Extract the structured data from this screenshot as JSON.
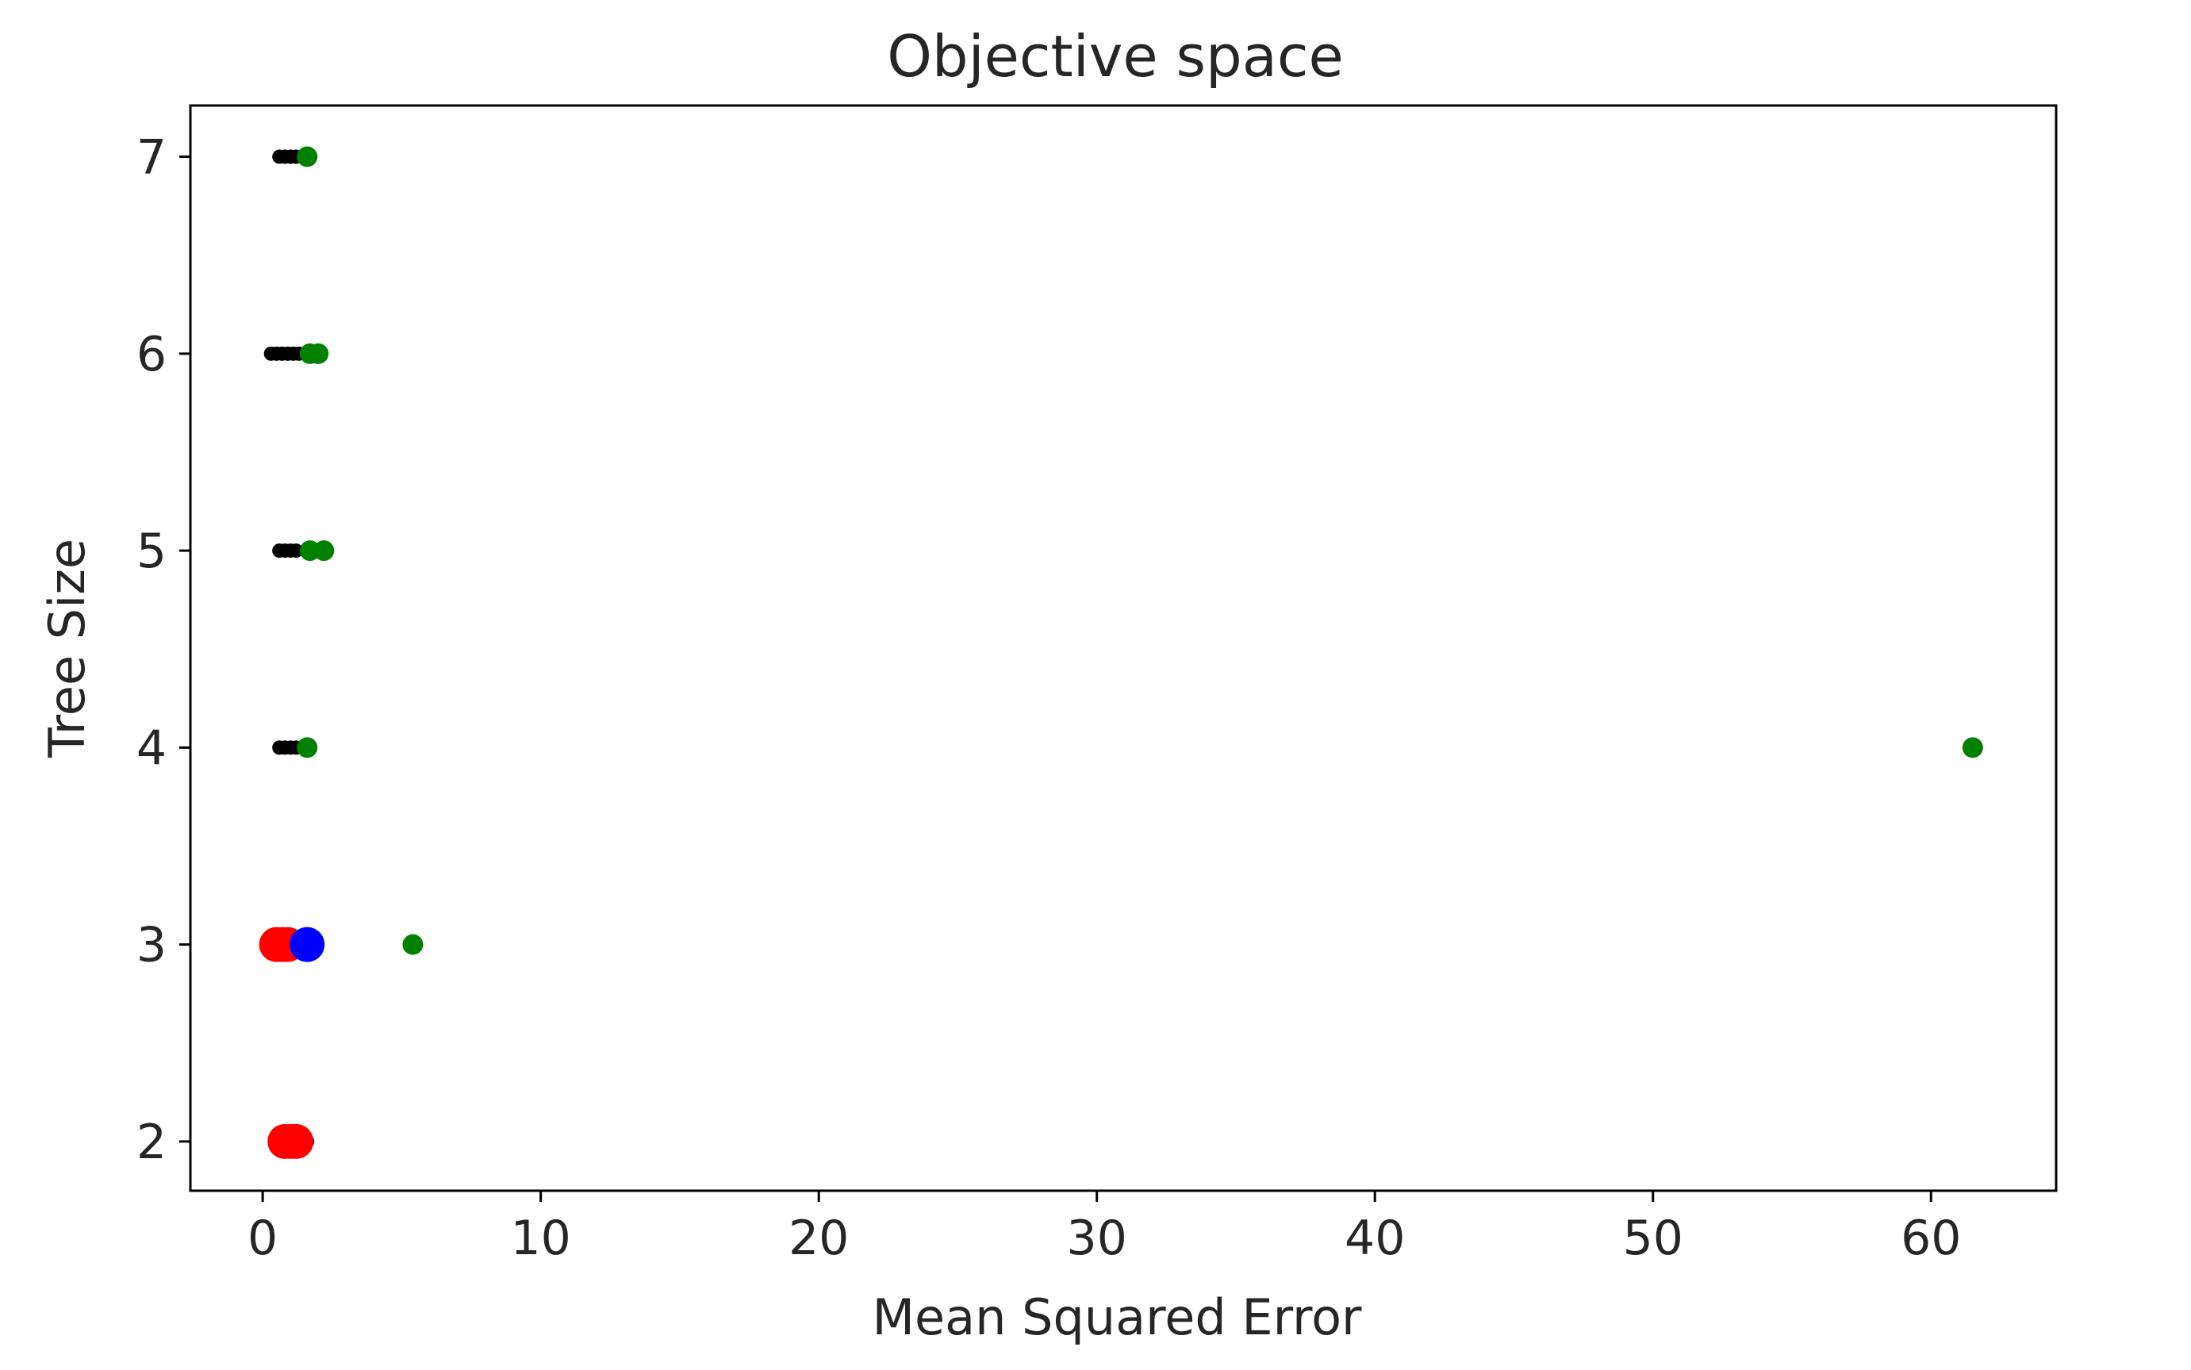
{
  "chart_data": {
    "type": "scatter",
    "title": "Objective space",
    "xlabel": "Mean Squared Error",
    "ylabel": "Tree Size",
    "xlim": [
      -2.6,
      64.5
    ],
    "ylim": [
      1.75,
      7.26
    ],
    "xticks": [
      0,
      10,
      20,
      30,
      40,
      50,
      60
    ],
    "yticks": [
      2,
      3,
      4,
      5,
      6,
      7
    ],
    "grid": false,
    "legend": "none",
    "series": [
      {
        "color": "#000000",
        "marker": "small-dot",
        "points": [
          {
            "x": 0.6,
            "y": 7
          },
          {
            "x": 0.8,
            "y": 7
          },
          {
            "x": 1.0,
            "y": 7
          },
          {
            "x": 1.2,
            "y": 7
          },
          {
            "x": 0.3,
            "y": 6
          },
          {
            "x": 0.5,
            "y": 6
          },
          {
            "x": 0.7,
            "y": 6
          },
          {
            "x": 0.9,
            "y": 6
          },
          {
            "x": 1.1,
            "y": 6
          },
          {
            "x": 1.3,
            "y": 6
          },
          {
            "x": 0.6,
            "y": 5
          },
          {
            "x": 0.8,
            "y": 5
          },
          {
            "x": 1.0,
            "y": 5
          },
          {
            "x": 1.2,
            "y": 5
          },
          {
            "x": 0.6,
            "y": 4
          },
          {
            "x": 0.8,
            "y": 4
          },
          {
            "x": 1.0,
            "y": 4
          },
          {
            "x": 1.2,
            "y": 4
          },
          {
            "x": 1.3,
            "y": 2
          },
          {
            "x": 1.6,
            "y": 2
          }
        ]
      },
      {
        "color": "#008000",
        "marker": "dot",
        "points": [
          {
            "x": 1.6,
            "y": 7
          },
          {
            "x": 1.7,
            "y": 6
          },
          {
            "x": 2.0,
            "y": 6
          },
          {
            "x": 1.7,
            "y": 5
          },
          {
            "x": 2.2,
            "y": 5
          },
          {
            "x": 1.6,
            "y": 4
          },
          {
            "x": 61.5,
            "y": 4
          },
          {
            "x": 5.4,
            "y": 3
          }
        ]
      },
      {
        "color": "#ff0000",
        "marker": "large-dot",
        "points": [
          {
            "x": 0.5,
            "y": 3
          },
          {
            "x": 0.7,
            "y": 3
          },
          {
            "x": 0.9,
            "y": 3
          },
          {
            "x": 0.8,
            "y": 2
          },
          {
            "x": 1.0,
            "y": 2
          },
          {
            "x": 1.2,
            "y": 2
          }
        ]
      },
      {
        "color": "#0000ff",
        "marker": "large-dot",
        "points": [
          {
            "x": 1.6,
            "y": 3
          }
        ]
      }
    ]
  }
}
